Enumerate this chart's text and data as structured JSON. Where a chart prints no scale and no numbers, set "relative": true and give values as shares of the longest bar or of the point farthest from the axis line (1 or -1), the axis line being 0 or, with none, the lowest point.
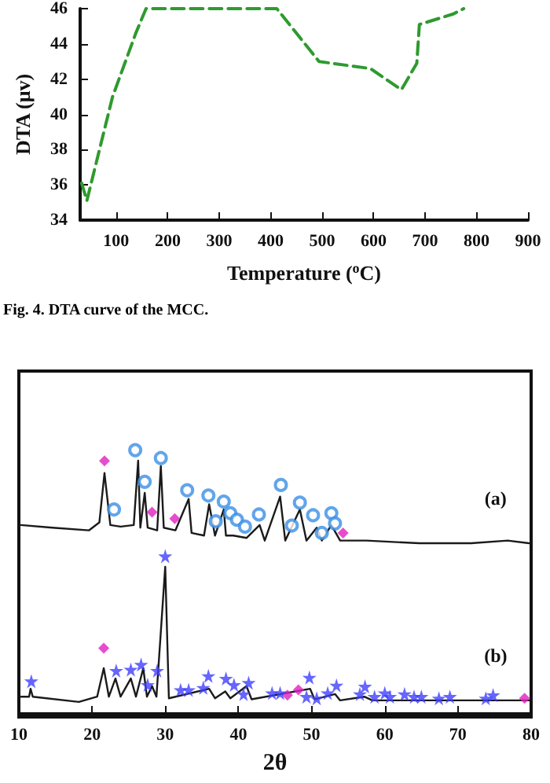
{
  "chart_data": [
    {
      "type": "line",
      "xlabel": "Temperature ($^{o}$C)",
      "ylabel": "DTA (μv)",
      "xlim": [
        30,
        900
      ],
      "xticks": [
        100,
        200,
        300,
        400,
        500,
        600,
        700,
        800,
        900
      ],
      "ylim": [
        34,
        46
      ],
      "yticks": [
        34,
        36,
        38,
        40,
        42,
        44,
        46
      ],
      "grid": false,
      "legend": false,
      "marker": "none",
      "line_style": "dashed",
      "x": [
        33,
        43,
        93,
        138,
        158,
        412,
        494,
        594,
        654,
        684,
        689,
        755,
        775
      ],
      "series": [
        {
          "color": "#2e9a2e",
          "values": [
            36.1,
            35.1,
            41,
            44.6,
            46,
            46,
            43,
            42.6,
            41.4,
            42.9,
            45.1,
            45.7,
            46
          ]
        }
      ],
      "annotations": [
        "Fig. 4. DTA curve of the MCC."
      ]
    },
    {
      "type": "line",
      "relative": true,
      "xlabel": "2θ",
      "xlim": [
        10,
        80
      ],
      "xticks": [
        10,
        20,
        30,
        40,
        50,
        60,
        70,
        80
      ],
      "grid": false,
      "legend": false,
      "tick_labels": "x",
      "marker": "none",
      "line_style": "solid",
      "series": [
        {
          "color": "#1a1a1a",
          "x": [
            10.3,
            14.6,
            19.6,
            21.0,
            21.7,
            22.5,
            23.9,
            25.7,
            26.3,
            26.6,
            27.2,
            27.6,
            28.9,
            29.4,
            29.8,
            31.4,
            33.2,
            33.6,
            35.3,
            36.0,
            36.8,
            38.0,
            38.3,
            39.3,
            41.1,
            42.9,
            43.6,
            45.7,
            46.4,
            48.4,
            49.3,
            50.7,
            51.4,
            52.7,
            53.9,
            57.5,
            64.7,
            71.8,
            76.8,
            79.7
          ],
          "values": [
            0.716,
            0.706,
            0.696,
            0.726,
            0.913,
            0.716,
            0.71,
            0.716,
            0.96,
            0.706,
            0.838,
            0.706,
            0.696,
            0.94,
            0.706,
            0.696,
            0.815,
            0.686,
            0.676,
            0.795,
            0.676,
            0.775,
            0.676,
            0.676,
            0.667,
            0.716,
            0.657,
            0.824,
            0.657,
            0.775,
            0.657,
            0.706,
            0.657,
            0.716,
            0.657,
            0.657,
            0.647,
            0.647,
            0.657,
            0.647
          ]
        },
        {
          "color": "#1a1a1a",
          "x": [
            10.3,
            11.4,
            11.6,
            11.9,
            18.2,
            20.7,
            21.6,
            22.3,
            23.2,
            23.9,
            25.3,
            26.0,
            27.0,
            27.5,
            28.2,
            28.8,
            30.0,
            30.5,
            36.0,
            36.8,
            38.2,
            38.9,
            41.1,
            41.8,
            49.8,
            50.4,
            53.2,
            53.9,
            57.2,
            58.3,
            79.7
          ],
          "values": [
            0.065,
            0.065,
            0.095,
            0.065,
            0.045,
            0.065,
            0.173,
            0.065,
            0.134,
            0.065,
            0.134,
            0.065,
            0.173,
            0.065,
            0.105,
            0.065,
            0.558,
            0.059,
            0.095,
            0.059,
            0.085,
            0.059,
            0.105,
            0.055,
            0.095,
            0.055,
            0.075,
            0.051,
            0.065,
            0.051,
            0.051
          ]
        },
        {
          "type": "scatter",
          "marker": "circle",
          "color": "#3a8ee6",
          "x": [
            25.9,
            23.0,
            27.2,
            29.4,
            33.0,
            35.9,
            38.0,
            36.9,
            38.9,
            39.8,
            40.9,
            42.8,
            45.8,
            48.4,
            47.3,
            50.2,
            52.7,
            51.4,
            53.2
          ],
          "values": [
            1,
            0.775,
            0.88,
            0.97,
            0.848,
            0.828,
            0.805,
            0.73,
            0.761,
            0.736,
            0.71,
            0.756,
            0.868,
            0.801,
            0.714,
            0.753,
            0.761,
            0.686,
            0.722
          ]
        },
        {
          "type": "scatter",
          "marker": "diamond",
          "color": "#e020c0",
          "x": [
            21.7,
            28.2,
            31.3,
            54.3,
            21.6,
            46.7,
            48.2,
            79.1
          ],
          "values": [
            0.959,
            0.765,
            0.74,
            0.686,
            0.249,
            0.071,
            0.091,
            0.059
          ]
        },
        {
          "type": "scatter",
          "marker": "star",
          "color": "#4040ff",
          "x": [
            30.0,
            11.7,
            23.3,
            25.3,
            26.7,
            27.6,
            28.9,
            32.1,
            33.2,
            35.2,
            35.9,
            38.3,
            39.4,
            40.7,
            41.4,
            44.6,
            45.7,
            49.7,
            49.3,
            50.7,
            52.2,
            53.4,
            56.6,
            57.3,
            58.6,
            60.0,
            60.7,
            62.7,
            64.0,
            65.0,
            67.4,
            68.9,
            73.8,
            74.8
          ],
          "values": [
            0.598,
            0.124,
            0.164,
            0.168,
            0.187,
            0.11,
            0.164,
            0.091,
            0.091,
            0.099,
            0.144,
            0.134,
            0.11,
            0.075,
            0.118,
            0.079,
            0.079,
            0.138,
            0.065,
            0.059,
            0.079,
            0.108,
            0.075,
            0.104,
            0.065,
            0.079,
            0.065,
            0.075,
            0.065,
            0.065,
            0.059,
            0.065,
            0.059,
            0.071
          ]
        }
      ],
      "annotations": [
        "(a)",
        "(b)"
      ]
    }
  ]
}
